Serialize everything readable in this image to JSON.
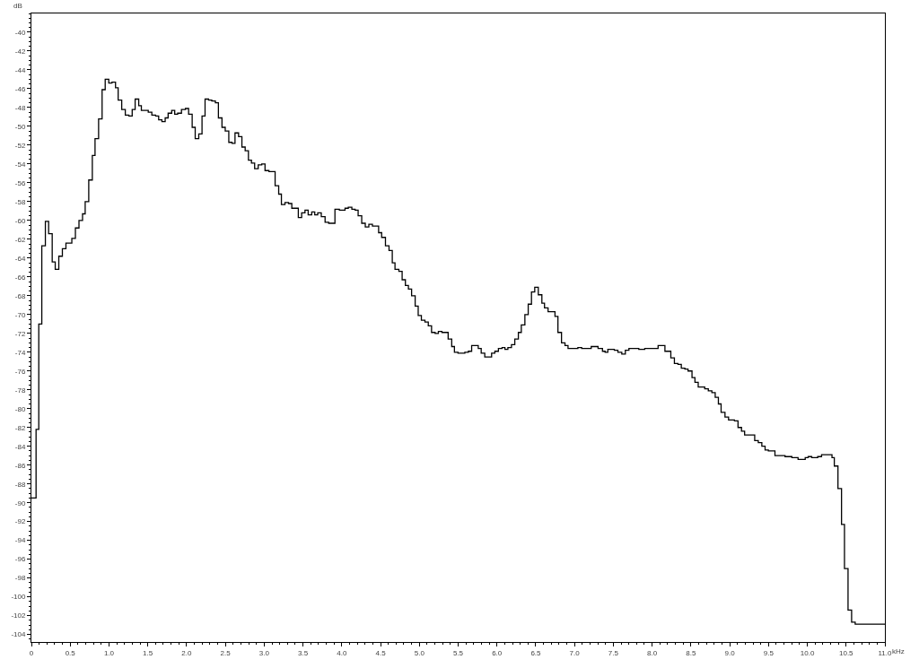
{
  "chart_data": {
    "type": "step",
    "xlabel": "kHz",
    "ylabel": "dB",
    "x": [
      0,
      0.06,
      0.095,
      0.134,
      0.18,
      0.222,
      0.268,
      0.307,
      0.353,
      0.399,
      0.445,
      0.521,
      0.567,
      0.613,
      0.659,
      0.693,
      0.739,
      0.785,
      0.82,
      0.866,
      0.911,
      0.951,
      0.997,
      1.038,
      1.084,
      1.118,
      1.164,
      1.21,
      1.256,
      1.299,
      1.337,
      1.383,
      1.417,
      1.506,
      1.552,
      1.601,
      1.64,
      1.682,
      1.724,
      1.762,
      1.808,
      1.847,
      1.885,
      1.934,
      1.985,
      2.026,
      2.072,
      2.111,
      2.157,
      2.199,
      2.238,
      2.284,
      2.325,
      2.371,
      2.41,
      2.456,
      2.498,
      2.544,
      2.586,
      2.624,
      2.67,
      2.713,
      2.755,
      2.797,
      2.836,
      2.877,
      2.923,
      2.969,
      3.011,
      3.061,
      3.141,
      3.187,
      3.222,
      3.268,
      3.314,
      3.356,
      3.44,
      3.483,
      3.526,
      3.567,
      3.613,
      3.652,
      3.69,
      3.736,
      3.785,
      3.831,
      3.912,
      3.969,
      4.042,
      4.084,
      4.13,
      4.172,
      4.211,
      4.257,
      4.303,
      4.349,
      4.395,
      4.475,
      4.514,
      4.563,
      4.609,
      4.651,
      4.686,
      4.736,
      4.778,
      4.82,
      4.859,
      4.9,
      4.946,
      4.985,
      5.026,
      5.072,
      5.115,
      5.157,
      5.203,
      5.245,
      5.291,
      5.371,
      5.417,
      5.452,
      5.498,
      5.586,
      5.632,
      5.674,
      5.759,
      5.797,
      5.843,
      5.931,
      5.973,
      6.019,
      6.066,
      6.103,
      6.141,
      6.187,
      6.23,
      6.276,
      6.314,
      6.36,
      6.403,
      6.445,
      6.487,
      6.533,
      6.579,
      6.613,
      6.659,
      6.748,
      6.786,
      6.832,
      6.877,
      6.916,
      7.043,
      7.092,
      7.215,
      7.303,
      7.36,
      7.394,
      7.429,
      7.513,
      7.559,
      7.609,
      7.655,
      7.701,
      7.751,
      7.828,
      7.905,
      8.0,
      8.077,
      8.165,
      8.241,
      8.287,
      8.333,
      8.376,
      8.422,
      8.463,
      8.514,
      8.552,
      8.594,
      8.678,
      8.724,
      8.77,
      8.813,
      8.854,
      8.889,
      8.939,
      8.985,
      9.061,
      9.107,
      9.152,
      9.192,
      9.284,
      9.322,
      9.368,
      9.414,
      9.456,
      9.498,
      9.583,
      9.667,
      9.713,
      9.801,
      9.839,
      9.881,
      9.973,
      10.011,
      10.057,
      10.134,
      10.184,
      10.226,
      10.318,
      10.348,
      10.395,
      10.441,
      10.479,
      10.525,
      10.571,
      10.617,
      10.655,
      11.0
    ],
    "series": [
      {
        "color": "#000000",
        "values": [
          -89.5,
          -82.2,
          -71.0,
          -62.7,
          -60.1,
          -61.4,
          -64.4,
          -65.2,
          -63.8,
          -63.0,
          -62.4,
          -61.9,
          -60.8,
          -60.0,
          -59.3,
          -58.0,
          -55.7,
          -53.1,
          -51.3,
          -49.2,
          -46.1,
          -45.0,
          -45.4,
          -45.3,
          -45.9,
          -47.2,
          -48.2,
          -48.8,
          -48.9,
          -48.2,
          -47.1,
          -47.8,
          -48.3,
          -48.5,
          -48.8,
          -48.9,
          -49.3,
          -49.5,
          -49.1,
          -48.6,
          -48.3,
          -48.7,
          -48.6,
          -48.2,
          -48.1,
          -48.7,
          -50.1,
          -51.3,
          -50.8,
          -48.9,
          -47.1,
          -47.2,
          -47.3,
          -47.5,
          -49.1,
          -50.1,
          -50.5,
          -51.7,
          -51.8,
          -50.7,
          -51.1,
          -52.2,
          -52.6,
          -53.6,
          -53.9,
          -54.5,
          -54.1,
          -54.0,
          -54.7,
          -54.8,
          -56.3,
          -57.2,
          -58.3,
          -58.1,
          -58.2,
          -58.7,
          -59.7,
          -59.2,
          -58.9,
          -59.4,
          -59.1,
          -59.4,
          -59.2,
          -59.6,
          -60.2,
          -60.3,
          -58.8,
          -58.9,
          -58.7,
          -58.6,
          -58.8,
          -58.9,
          -59.5,
          -60.3,
          -60.7,
          -60.4,
          -60.6,
          -61.3,
          -61.8,
          -62.7,
          -63.2,
          -64.5,
          -65.2,
          -65.4,
          -66.3,
          -66.9,
          -67.3,
          -68.0,
          -69.1,
          -70.1,
          -70.6,
          -70.8,
          -71.2,
          -71.9,
          -72.0,
          -71.8,
          -71.9,
          -72.6,
          -73.4,
          -74.0,
          -74.1,
          -74.0,
          -73.9,
          -73.3,
          -73.6,
          -74.1,
          -74.5,
          -74.1,
          -73.9,
          -73.6,
          -73.5,
          -73.7,
          -73.5,
          -73.2,
          -72.6,
          -71.9,
          -71.1,
          -70.0,
          -68.9,
          -67.6,
          -67.1,
          -67.9,
          -68.8,
          -69.3,
          -69.7,
          -70.2,
          -71.9,
          -73.0,
          -73.3,
          -73.6,
          -73.5,
          -73.6,
          -73.4,
          -73.6,
          -73.9,
          -74.0,
          -73.7,
          -73.8,
          -74.0,
          -74.2,
          -73.8,
          -73.6,
          -73.6,
          -73.7,
          -73.6,
          -73.6,
          -73.3,
          -73.9,
          -74.6,
          -75.2,
          -75.3,
          -75.7,
          -75.8,
          -76.0,
          -76.7,
          -77.2,
          -77.7,
          -77.9,
          -78.1,
          -78.3,
          -78.8,
          -79.5,
          -80.4,
          -80.9,
          -81.2,
          -81.3,
          -82.0,
          -82.4,
          -82.8,
          -82.8,
          -83.4,
          -83.6,
          -84.0,
          -84.4,
          -84.5,
          -85.0,
          -85.0,
          -85.1,
          -85.2,
          -85.2,
          -85.4,
          -85.2,
          -85.1,
          -85.2,
          -85.1,
          -84.9,
          -84.9,
          -85.2,
          -86.1,
          -88.5,
          -92.3,
          -97.0,
          -101.4,
          -102.7,
          -102.9,
          -102.9,
          -102.9
        ]
      }
    ],
    "xlim": [
      0,
      11.0
    ],
    "ylim": [
      -104.8,
      -38
    ],
    "xticks": [
      0,
      0.5,
      {
        "value": 1,
        "label": "1.0"
      },
      1.5,
      {
        "value": 2,
        "label": "2.0"
      },
      2.5,
      {
        "value": 3,
        "label": "3.0"
      },
      3.5,
      {
        "value": 4,
        "label": "4.0"
      },
      4.5,
      {
        "value": 5,
        "label": "5.0"
      },
      5.5,
      {
        "value": 6,
        "label": "6.0"
      },
      6.5,
      {
        "value": 7,
        "label": "7.0"
      },
      7.5,
      {
        "value": 8,
        "label": "8.0"
      },
      8.5,
      {
        "value": 9,
        "label": "9.0"
      },
      9.5,
      {
        "value": 10,
        "label": "10.0"
      },
      10.5,
      {
        "value": 11,
        "label": "11.0"
      }
    ],
    "yticks": [
      -40,
      -42,
      -44,
      -46,
      -48,
      -50,
      -52,
      -54,
      -56,
      -58,
      -60,
      -62,
      -64,
      -66,
      -68,
      -70,
      -72,
      -74,
      -76,
      -78,
      -80,
      -82,
      -84,
      -86,
      -88,
      -90,
      -92,
      -94,
      -96,
      -98,
      -100,
      -102,
      -104
    ],
    "marker": "none",
    "line_style": "solid"
  }
}
